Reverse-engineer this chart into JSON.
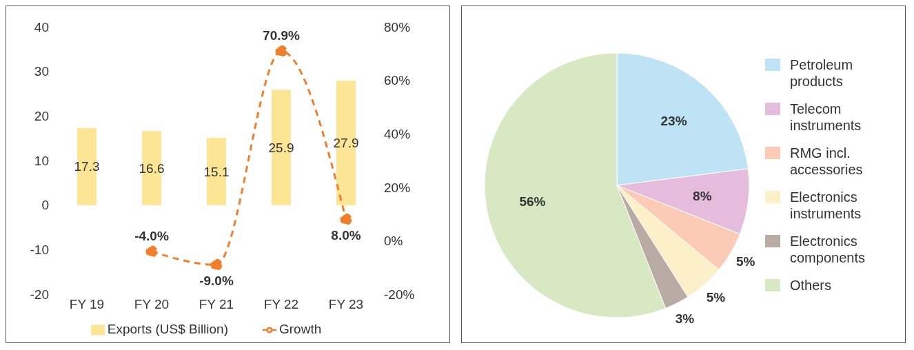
{
  "chart_data": [
    {
      "type": "bar",
      "categories": [
        "FY 19",
        "FY 20",
        "FY 21",
        "FY 22",
        "FY 23"
      ],
      "series": [
        {
          "name": "Exports (US$ Billion)",
          "type": "bar",
          "color": "#fde596",
          "values": [
            17.3,
            16.6,
            15.1,
            25.9,
            27.9
          ],
          "value_labels": [
            "17.3",
            "16.6",
            "15.1",
            "25.9",
            "27.9"
          ]
        },
        {
          "name": "Growth",
          "type": "line",
          "axis": "y2",
          "color": "#f07f2c",
          "values": [
            null,
            -4.0,
            -9.0,
            70.9,
            8.0
          ],
          "value_labels": [
            null,
            "-4.0%",
            "-9.0%",
            "70.9%",
            "8.0%"
          ],
          "marker": "circle",
          "line_style": "dashed"
        }
      ],
      "ylim": [
        -20,
        40
      ],
      "yticks": [
        -20,
        -10,
        0,
        10,
        20,
        30,
        40
      ],
      "y2lim": [
        -20,
        80
      ],
      "y2ticks": [
        {
          "value": -20,
          "label": "-20%"
        },
        {
          "value": 0,
          "label": "0%"
        },
        {
          "value": 20,
          "label": "20%"
        },
        {
          "value": 40,
          "label": "40%"
        },
        {
          "value": 60,
          "label": "60%"
        },
        {
          "value": 80,
          "label": "80%"
        }
      ],
      "grid": false,
      "legend": "bottom"
    },
    {
      "type": "pie",
      "categories": [
        "Petroleum products",
        "Telecom instruments",
        "RMG incl. accessories",
        "Electronics instruments",
        "Electronics components",
        "Others"
      ],
      "values": [
        23,
        8,
        5,
        5,
        3,
        56
      ],
      "colors": [
        "#bde3f5",
        "#e6bcdc",
        "#fbcbb6",
        "#fbf0c8",
        "#b7aba3",
        "#d8e8c3"
      ],
      "value_labels": [
        "23%",
        "8%",
        "5%",
        "5%",
        "3%",
        "56%"
      ],
      "legend": "right"
    }
  ]
}
